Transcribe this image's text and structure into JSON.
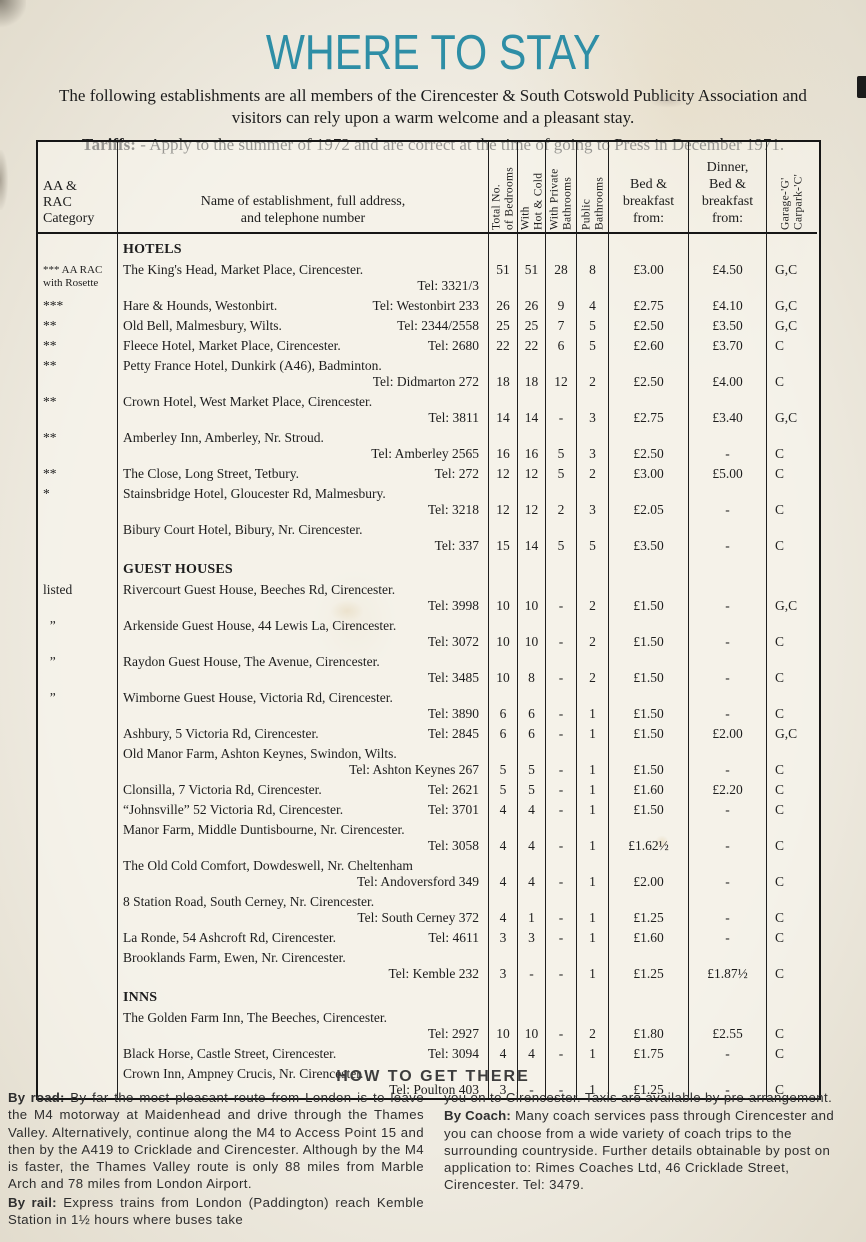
{
  "page": {
    "title": "WHERE TO STAY",
    "intro": [
      "The following establishments are all members of the Cirencester & South Cotswold Publicity Association and",
      "visitors can rely upon a warm welcome and a pleasant stay."
    ],
    "tariffs_label": "Tariffs:",
    "tariffs_text": "- Apply to the summer of 1972 and are correct at the time of going to Press in December 1971."
  },
  "colors": {
    "title_teal": "#2e8ea6",
    "paper": "#efebe1",
    "ink": "#1d1d1d"
  },
  "table": {
    "headers": {
      "category": [
        "AA &",
        "RAC",
        "Category"
      ],
      "name": [
        "Name of establishment, full address,",
        "and telephone number"
      ],
      "total_bedrooms": [
        "Total No.",
        "of Bedrooms"
      ],
      "hot_cold": [
        "With",
        "Hot & Cold"
      ],
      "private_bathrooms": [
        "With Private",
        "Bathrooms"
      ],
      "public_bathrooms": [
        "Public",
        "Bathrooms"
      ],
      "bed_breakfast": [
        "Bed &",
        "breakfast",
        "from:"
      ],
      "dinner_bed_breakfast": [
        "Dinner,",
        "Bed &",
        "breakfast",
        "from:"
      ],
      "garage": [
        "Garage-'G'",
        "Carpark-'C'"
      ]
    },
    "rows": [
      {
        "type": "section",
        "label": "HOTELS"
      },
      {
        "type": "entry",
        "cat_lines": [
          "*** AA RAC",
          "with Rosette"
        ],
        "cat_small": true,
        "name": "The King's Head, Market Place, Cirencester.",
        "tel": "Tel: 3321/3",
        "tel_newline": true,
        "vals_align": "top",
        "vals": [
          "51",
          "51",
          "28",
          "8",
          "£3.00",
          "£4.50",
          "G,C"
        ]
      },
      {
        "type": "entry",
        "cat": "***",
        "name": "Hare & Hounds, Westonbirt.",
        "tel": "Tel: Westonbirt 233",
        "tel_newline": false,
        "vals": [
          "26",
          "26",
          "9",
          "4",
          "£2.75",
          "£4.10",
          "G,C"
        ]
      },
      {
        "type": "entry",
        "cat": "**",
        "name": "Old Bell, Malmesbury, Wilts.",
        "tel": "Tel: 2344/2558",
        "tel_newline": false,
        "vals": [
          "25",
          "25",
          "7",
          "5",
          "£2.50",
          "£3.50",
          "G,C"
        ]
      },
      {
        "type": "entry",
        "cat": "**",
        "name": "Fleece Hotel, Market Place, Cirencester.",
        "tel": "Tel: 2680",
        "tel_newline": false,
        "vals": [
          "22",
          "22",
          "6",
          "5",
          "£2.60",
          "£3.70",
          "C"
        ]
      },
      {
        "type": "entry",
        "cat": "**",
        "name": "Petty France Hotel, Dunkirk (A46), Badminton.",
        "tel": "Tel: Didmarton 272",
        "tel_newline": true,
        "vals": [
          "18",
          "18",
          "12",
          "2",
          "£2.50",
          "£4.00",
          "C"
        ]
      },
      {
        "type": "entry",
        "cat": "**",
        "name": "Crown Hotel, West Market Place, Cirencester.",
        "tel": "Tel: 3811",
        "tel_newline": true,
        "vals": [
          "14",
          "14",
          "-",
          "3",
          "£2.75",
          "£3.40",
          "G,C"
        ]
      },
      {
        "type": "entry",
        "cat": "**",
        "name": "Amberley Inn, Amberley, Nr. Stroud.",
        "tel": "Tel: Amberley 2565",
        "tel_newline": true,
        "vals": [
          "16",
          "16",
          "5",
          "3",
          "£2.50",
          "-",
          "C"
        ]
      },
      {
        "type": "entry",
        "cat": "**",
        "name": "The Close, Long Street, Tetbury.",
        "tel": "Tel: 272",
        "tel_newline": false,
        "vals": [
          "12",
          "12",
          "5",
          "2",
          "£3.00",
          "£5.00",
          "C"
        ]
      },
      {
        "type": "entry",
        "cat": "*",
        "name": "Stainsbridge Hotel, Gloucester Rd, Malmesbury.",
        "tel": "Tel: 3218",
        "tel_newline": true,
        "vals": [
          "12",
          "12",
          "2",
          "3",
          "£2.05",
          "-",
          "C"
        ]
      },
      {
        "type": "entry",
        "cat": "",
        "name": "Bibury Court Hotel, Bibury, Nr. Cirencester.",
        "tel": "Tel: 337",
        "tel_newline": true,
        "vals": [
          "15",
          "14",
          "5",
          "5",
          "£3.50",
          "-",
          "C"
        ]
      },
      {
        "type": "section",
        "label": "GUEST HOUSES"
      },
      {
        "type": "entry",
        "cat": "listed",
        "name": "Rivercourt Guest House, Beeches Rd, Cirencester.",
        "tel": "Tel: 3998",
        "tel_newline": true,
        "vals": [
          "10",
          "10",
          "-",
          "2",
          "£1.50",
          "-",
          "G,C"
        ]
      },
      {
        "type": "entry",
        "cat": "  ”",
        "name": "Arkenside Guest House, 44 Lewis La, Cirencester.",
        "tel": "Tel: 3072",
        "tel_newline": true,
        "vals": [
          "10",
          "10",
          "-",
          "2",
          "£1.50",
          "-",
          "C"
        ]
      },
      {
        "type": "entry",
        "cat": "  ”",
        "name": "Raydon Guest House, The Avenue, Cirencester.",
        "tel": "Tel: 3485",
        "tel_newline": true,
        "vals": [
          "10",
          "8",
          "-",
          "2",
          "£1.50",
          "-",
          "C"
        ]
      },
      {
        "type": "entry",
        "cat": "  ”",
        "name": "Wimborne Guest House, Victoria Rd, Cirencester.",
        "tel": "Tel: 3890",
        "tel_newline": true,
        "vals": [
          "6",
          "6",
          "-",
          "1",
          "£1.50",
          "-",
          "C"
        ]
      },
      {
        "type": "entry",
        "cat": "",
        "name": "Ashbury, 5 Victoria Rd, Cirencester.",
        "tel": "Tel: 2845",
        "tel_newline": false,
        "vals": [
          "6",
          "6",
          "-",
          "1",
          "£1.50",
          "£2.00",
          "G,C"
        ]
      },
      {
        "type": "entry",
        "cat": "",
        "name": "Old Manor Farm, Ashton Keynes, Swindon, Wilts.",
        "tel": "Tel: Ashton Keynes 267",
        "tel_newline": true,
        "vals": [
          "5",
          "5",
          "-",
          "1",
          "£1.50",
          "-",
          "C"
        ]
      },
      {
        "type": "entry",
        "cat": "",
        "name": "Clonsilla, 7 Victoria Rd, Cirencester.",
        "tel": "Tel: 2621",
        "tel_newline": false,
        "vals": [
          "5",
          "5",
          "-",
          "1",
          "£1.60",
          "£2.20",
          "C"
        ]
      },
      {
        "type": "entry",
        "cat": "",
        "name": "“Johnsville” 52 Victoria Rd, Cirencester.",
        "tel": "Tel: 3701",
        "tel_newline": false,
        "vals": [
          "4",
          "4",
          "-",
          "1",
          "£1.50",
          "-",
          "C"
        ]
      },
      {
        "type": "entry",
        "cat": "",
        "name": "Manor Farm, Middle Duntisbourne, Nr. Cirencester.",
        "tel": "Tel: 3058",
        "tel_newline": true,
        "vals": [
          "4",
          "4",
          "-",
          "1",
          "£1.62½",
          "-",
          "C"
        ]
      },
      {
        "type": "entry",
        "cat": "",
        "name": "The Old Cold Comfort, Dowdeswell, Nr. Cheltenham",
        "tel": "Tel: Andoversford 349",
        "tel_newline": true,
        "vals": [
          "4",
          "4",
          "-",
          "1",
          "£2.00",
          "-",
          "C"
        ]
      },
      {
        "type": "entry",
        "cat": "",
        "name": "8 Station Road, South Cerney, Nr. Cirencester.",
        "tel": "Tel: South Cerney 372",
        "tel_newline": true,
        "vals": [
          "4",
          "1",
          "-",
          "1",
          "£1.25",
          "-",
          "C"
        ]
      },
      {
        "type": "entry",
        "cat": "",
        "name": "La Ronde, 54 Ashcroft Rd, Cirencester.",
        "tel": "Tel: 4611",
        "tel_newline": false,
        "vals": [
          "3",
          "3",
          "-",
          "1",
          "£1.60",
          "-",
          "C"
        ]
      },
      {
        "type": "entry",
        "cat": "",
        "name": "Brooklands Farm, Ewen, Nr. Cirencester.",
        "tel": "Tel: Kemble 232",
        "tel_newline": true,
        "vals": [
          "3",
          "-",
          "-",
          "1",
          "£1.25",
          "£1.87½",
          "C"
        ]
      },
      {
        "type": "section",
        "label": "INNS"
      },
      {
        "type": "entry",
        "cat": "",
        "name": "The Golden Farm Inn, The Beeches, Cirencester.",
        "tel": "Tel: 2927",
        "tel_newline": true,
        "vals": [
          "10",
          "10",
          "-",
          "2",
          "£1.80",
          "£2.55",
          "C"
        ]
      },
      {
        "type": "entry",
        "cat": "",
        "name": "Black Horse, Castle Street, Cirencester.",
        "tel": "Tel: 3094",
        "tel_newline": false,
        "vals": [
          "4",
          "4",
          "-",
          "1",
          "£1.75",
          "-",
          "C"
        ]
      },
      {
        "type": "entry",
        "cat": "",
        "name": "Crown Inn, Ampney Crucis, Nr. Cirencester.",
        "tel": "Tel: Poulton 403",
        "tel_newline": true,
        "vals": [
          "3",
          "-",
          "-",
          "1",
          "£1.25",
          "-",
          "C"
        ]
      }
    ]
  },
  "footer": {
    "heading": "HOW TO GET THERE",
    "left": [
      {
        "label": "By road:",
        "text": "By far the most pleasant route from London is to leave the M4 motorway at Maidenhead and drive through the Thames Valley. Alternatively, continue along the M4 to Access Point 15 and then by the A419 to Cricklade and Cirencester. Although by the M4 is faster, the Thames Valley route is only 88 miles from Marble Arch and 78 miles from London Airport."
      },
      {
        "label": "By rail:",
        "text": "Express trains from London (Paddington) reach Kemble Station in 1½ hours where buses take"
      }
    ],
    "right": [
      {
        "label": "",
        "text": "you on to Cirencester. Taxis are available by pre-arrangement."
      },
      {
        "label": "By Coach:",
        "text": "Many coach services pass through Cirencester and you can choose from a wide variety of coach trips to the surrounding countryside. Further details obtainable by post on application to: Rimes Coaches Ltd, 46 Cricklade Street, Cirencester. Tel: 3479."
      }
    ]
  }
}
